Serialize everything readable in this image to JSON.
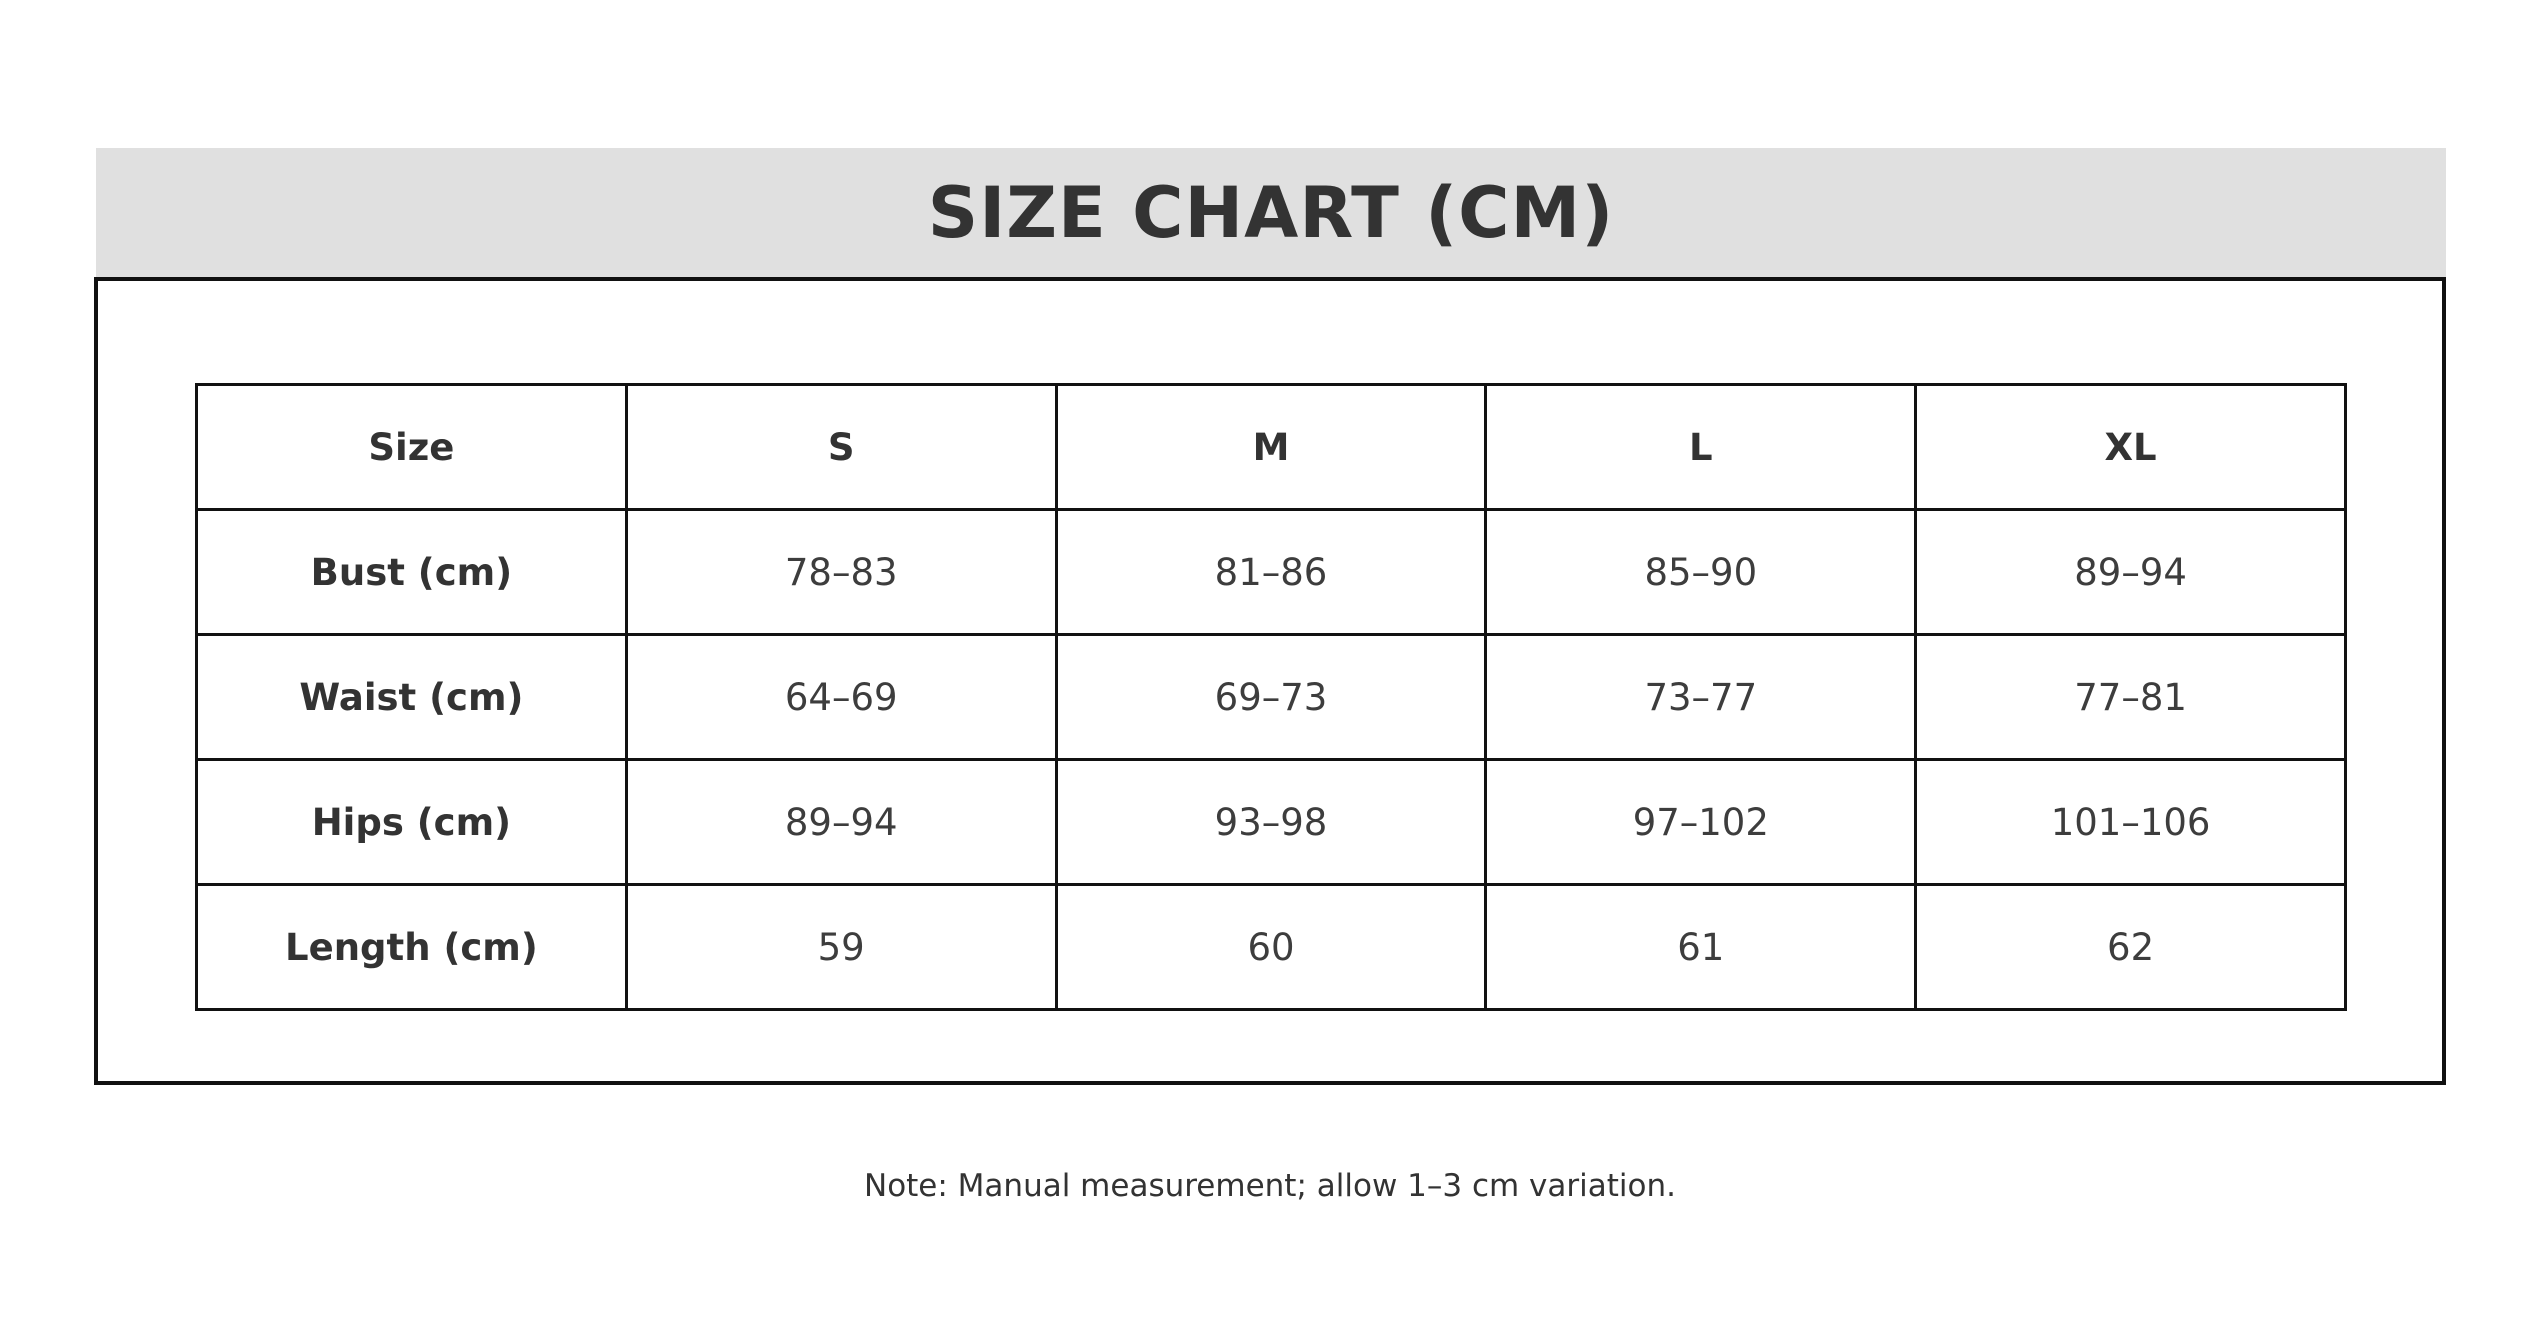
{
  "title": "SIZE CHART (CM)",
  "note": "Note: Manual measurement; allow 1–3 cm variation.",
  "table": {
    "headers": [
      "Size",
      "S",
      "M",
      "L",
      "XL"
    ],
    "rows": [
      {
        "label": "Bust (cm)",
        "values": [
          "78–83",
          "81–86",
          "85–90",
          "89–94"
        ]
      },
      {
        "label": "Waist (cm)",
        "values": [
          "64–69",
          "69–73",
          "73–77",
          "77–81"
        ]
      },
      {
        "label": "Hips (cm)",
        "values": [
          "89–94",
          "93–98",
          "97–102",
          "101–106"
        ]
      },
      {
        "label": "Length (cm)",
        "values": [
          "59",
          "60",
          "61",
          "62"
        ]
      }
    ]
  },
  "colors": {
    "band_background": "#e0e0e0",
    "text": "#333333",
    "border": "#111111",
    "page_background": "#ffffff"
  },
  "chart_data": {
    "type": "table",
    "title": "SIZE CHART (CM)",
    "columns": [
      "Size",
      "S",
      "M",
      "L",
      "XL"
    ],
    "rows": [
      [
        "Bust (cm)",
        "78–83",
        "81–86",
        "85–90",
        "89–94"
      ],
      [
        "Waist (cm)",
        "64–69",
        "69–73",
        "73–77",
        "77–81"
      ],
      [
        "Hips (cm)",
        "89–94",
        "93–98",
        "97–102",
        "101–106"
      ],
      [
        "Length (cm)",
        "59",
        "60",
        "61",
        "62"
      ]
    ],
    "footnote": "Note: Manual measurement; allow 1–3 cm variation."
  }
}
